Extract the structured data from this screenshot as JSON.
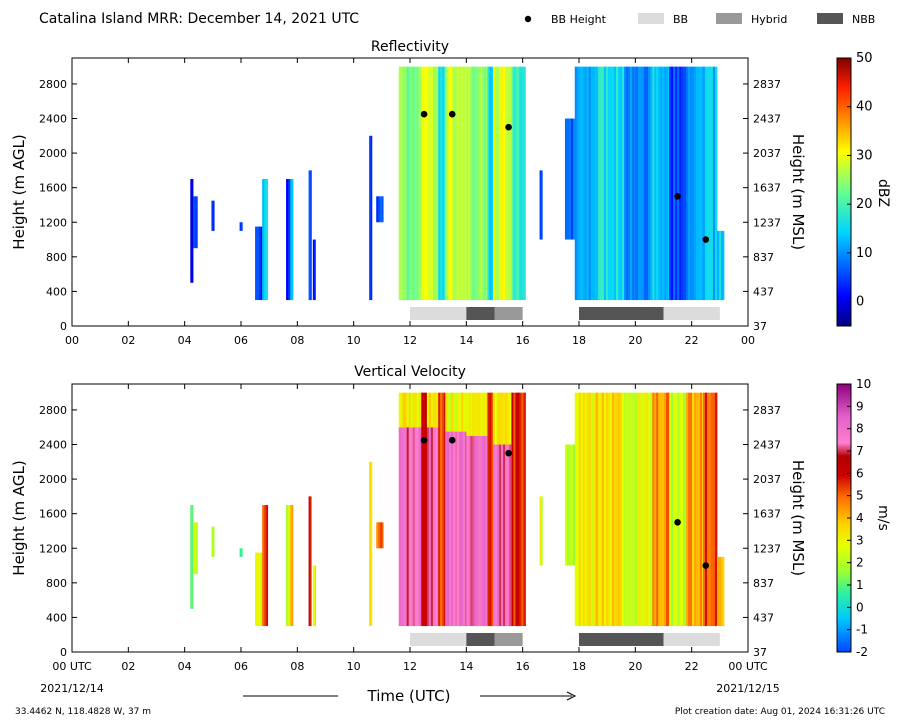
{
  "header": {
    "title": "Catalina Island MRR:  December 14, 2021 UTC",
    "legend": [
      {
        "label": "BB Height",
        "kind": "dot",
        "color": "#000000"
      },
      {
        "label": "BB",
        "kind": "box",
        "color": "#dcdcdc"
      },
      {
        "label": "Hybrid",
        "kind": "box",
        "color": "#999999"
      },
      {
        "label": "NBB",
        "kind": "box",
        "color": "#555555"
      }
    ]
  },
  "footer": {
    "location": "33.4462 N, 118.4828 W, 37 m",
    "creation": "Plot creation date: Aug 01, 2024 16:31:26 UTC",
    "xlabel": "Time (UTC)",
    "start_date": "2021/12/14",
    "end_date": "2021/12/15"
  },
  "chart_data": [
    {
      "type": "heatmap",
      "title": "Reflectivity",
      "xlabel": "Time (UTC)",
      "ylabel": "Height (m AGL)",
      "ylabel_right": "Height (m MSL)",
      "colorbar_label": "dBZ",
      "colorbar_range": [
        -5,
        50
      ],
      "colorbar_ticks": [
        "0",
        "10",
        "20",
        "30",
        "40",
        "50"
      ],
      "colormap": "jet",
      "xlim": [
        0,
        24
      ],
      "ylim": [
        0,
        3100
      ],
      "x_ticks": [
        "00",
        "02",
        "04",
        "06",
        "08",
        "10",
        "12",
        "14",
        "16",
        "18",
        "20",
        "22",
        "00"
      ],
      "y_ticks": [
        "0",
        "400",
        "800",
        "1200",
        "1600",
        "2000",
        "2400",
        "2800"
      ],
      "y_ticks_right": [
        "37",
        "437",
        "837",
        "1237",
        "1637",
        "2037",
        "2437",
        "2837"
      ],
      "bb_height_points": [
        [
          12.5,
          2450
        ],
        [
          13.5,
          2450
        ],
        [
          15.5,
          2300
        ],
        [
          21.5,
          1500
        ],
        [
          22.5,
          1000
        ]
      ],
      "bb_type_bar": [
        {
          "start": 12.0,
          "end": 14.0,
          "type": "BB"
        },
        {
          "start": 14.0,
          "end": 15.0,
          "type": "NBB"
        },
        {
          "start": 15.0,
          "end": 16.0,
          "type": "Hybrid"
        },
        {
          "start": 18.0,
          "end": 21.0,
          "type": "NBB"
        },
        {
          "start": 21.0,
          "end": 23.0,
          "type": "BB"
        }
      ],
      "echo_columns": [
        {
          "t0": 4.2,
          "t1": 4.3,
          "h0": 500,
          "h1": 1700,
          "v": 2
        },
        {
          "t0": 4.3,
          "t1": 4.45,
          "h0": 900,
          "h1": 1500,
          "v": 3
        },
        {
          "t0": 4.95,
          "t1": 5.05,
          "h0": 1100,
          "h1": 1450,
          "v": 2
        },
        {
          "t0": 5.95,
          "t1": 6.05,
          "h0": 1100,
          "h1": 1200,
          "v": 7
        },
        {
          "t0": 6.5,
          "t1": 6.75,
          "h0": 300,
          "h1": 1150,
          "v": 3
        },
        {
          "t0": 6.75,
          "t1": 6.95,
          "h0": 300,
          "h1": 1700,
          "v": 14
        },
        {
          "t0": 7.6,
          "t1": 7.75,
          "h0": 300,
          "h1": 1700,
          "v": 4
        },
        {
          "t0": 7.75,
          "t1": 7.85,
          "h0": 300,
          "h1": 1700,
          "v": 12
        },
        {
          "t0": 8.4,
          "t1": 8.5,
          "h0": 300,
          "h1": 1800,
          "v": 6
        },
        {
          "t0": 8.55,
          "t1": 8.65,
          "h0": 300,
          "h1": 1000,
          "v": 3
        },
        {
          "t0": 10.55,
          "t1": 10.65,
          "h0": 300,
          "h1": 2200,
          "v": 3
        },
        {
          "t0": 10.8,
          "t1": 11.05,
          "h0": 1200,
          "h1": 1500,
          "v": 6
        },
        {
          "t0": 11.6,
          "t1": 12.4,
          "h0": 300,
          "h1": 3000,
          "v": 24
        },
        {
          "t0": 12.4,
          "t1": 12.6,
          "h0": 300,
          "h1": 3000,
          "v": 30
        },
        {
          "t0": 12.6,
          "t1": 13.0,
          "h0": 300,
          "h1": 3000,
          "v": 26
        },
        {
          "t0": 13.0,
          "t1": 13.25,
          "h0": 300,
          "h1": 3000,
          "v": 16
        },
        {
          "t0": 13.25,
          "t1": 14.0,
          "h0": 300,
          "h1": 3000,
          "v": 28
        },
        {
          "t0": 14.0,
          "t1": 14.75,
          "h0": 300,
          "h1": 3000,
          "v": 25
        },
        {
          "t0": 14.75,
          "t1": 14.95,
          "h0": 300,
          "h1": 3000,
          "v": 14
        },
        {
          "t0": 14.95,
          "t1": 15.6,
          "h0": 300,
          "h1": 3000,
          "v": 29
        },
        {
          "t0": 15.6,
          "t1": 16.1,
          "h0": 300,
          "h1": 3000,
          "v": 18
        },
        {
          "t0": 16.6,
          "t1": 16.7,
          "h0": 1000,
          "h1": 1800,
          "v": 6
        },
        {
          "t0": 17.5,
          "t1": 17.85,
          "h0": 1000,
          "h1": 2400,
          "v": 8
        },
        {
          "t0": 17.85,
          "t1": 18.6,
          "h0": 300,
          "h1": 3000,
          "v": 12
        },
        {
          "t0": 18.6,
          "t1": 19.6,
          "h0": 300,
          "h1": 3000,
          "v": 16
        },
        {
          "t0": 19.6,
          "t1": 20.6,
          "h0": 300,
          "h1": 3000,
          "v": 10
        },
        {
          "t0": 20.6,
          "t1": 21.2,
          "h0": 300,
          "h1": 3000,
          "v": 14
        },
        {
          "t0": 21.2,
          "t1": 21.8,
          "h0": 300,
          "h1": 3000,
          "v": 5
        },
        {
          "t0": 21.8,
          "t1": 22.4,
          "h0": 300,
          "h1": 3000,
          "v": 10
        },
        {
          "t0": 22.4,
          "t1": 22.9,
          "h0": 300,
          "h1": 3000,
          "v": 13
        },
        {
          "t0": 22.9,
          "t1": 23.15,
          "h0": 300,
          "h1": 1100,
          "v": 15
        }
      ]
    },
    {
      "type": "heatmap",
      "title": "Vertical Velocity",
      "xlabel": "Time (UTC)",
      "ylabel": "Height (m AGL)",
      "ylabel_right": "Height (m MSL)",
      "colorbar_label": "m/s",
      "colorbar_range": [
        -2,
        10
      ],
      "colorbar_ticks": [
        "-2",
        "-1",
        "0",
        "1",
        "2",
        "3",
        "4",
        "5",
        "6",
        "7",
        "8",
        "9",
        "10"
      ],
      "colormap": "velocity",
      "xlim": [
        0,
        24
      ],
      "ylim": [
        0,
        3100
      ],
      "x_ticks": [
        "00 UTC",
        "02",
        "04",
        "06",
        "08",
        "10",
        "12",
        "14",
        "16",
        "18",
        "20",
        "22",
        "00 UTC"
      ],
      "y_ticks": [
        "0",
        "400",
        "800",
        "1200",
        "1600",
        "2000",
        "2400",
        "2800"
      ],
      "y_ticks_right": [
        "37",
        "437",
        "837",
        "1237",
        "1637",
        "2037",
        "2437",
        "2837"
      ],
      "bb_height_points": [
        [
          12.5,
          2450
        ],
        [
          13.5,
          2450
        ],
        [
          15.5,
          2300
        ],
        [
          21.5,
          1500
        ],
        [
          22.5,
          1000
        ]
      ],
      "bb_type_bar": [
        {
          "start": 12.0,
          "end": 14.0,
          "type": "BB"
        },
        {
          "start": 14.0,
          "end": 15.0,
          "type": "NBB"
        },
        {
          "start": 15.0,
          "end": 16.0,
          "type": "Hybrid"
        },
        {
          "start": 18.0,
          "end": 21.0,
          "type": "NBB"
        },
        {
          "start": 21.0,
          "end": 23.0,
          "type": "BB"
        }
      ],
      "echo_columns": [
        {
          "t0": 4.2,
          "t1": 4.3,
          "h0": 500,
          "h1": 1700,
          "v": 1.5
        },
        {
          "t0": 4.3,
          "t1": 4.45,
          "h0": 900,
          "h1": 1500,
          "v": 1.8
        },
        {
          "t0": 4.95,
          "t1": 5.05,
          "h0": 1100,
          "h1": 1450,
          "v": 1.5
        },
        {
          "t0": 5.95,
          "t1": 6.05,
          "h0": 1100,
          "h1": 1200,
          "v": 1.2
        },
        {
          "t0": 6.5,
          "t1": 6.75,
          "h0": 300,
          "h1": 1150,
          "v": 2.3
        },
        {
          "t0": 6.75,
          "t1": 6.95,
          "h0": 300,
          "h1": 1700,
          "v": 5.2
        },
        {
          "t0": 7.6,
          "t1": 7.75,
          "h0": 300,
          "h1": 1700,
          "v": 2.5
        },
        {
          "t0": 7.75,
          "t1": 7.85,
          "h0": 300,
          "h1": 1700,
          "v": 4.0
        },
        {
          "t0": 8.4,
          "t1": 8.5,
          "h0": 300,
          "h1": 1800,
          "v": 5.8
        },
        {
          "t0": 8.55,
          "t1": 8.65,
          "h0": 300,
          "h1": 1000,
          "v": 3.0
        },
        {
          "t0": 10.55,
          "t1": 10.65,
          "h0": 300,
          "h1": 2200,
          "v": 3.2
        },
        {
          "t0": 10.8,
          "t1": 11.05,
          "h0": 1200,
          "h1": 1500,
          "v": 5.0
        },
        {
          "t0": 11.6,
          "t1": 12.4,
          "h0": 300,
          "h1": 2600,
          "v": 7.6
        },
        {
          "t0": 11.6,
          "t1": 12.4,
          "h0": 2600,
          "h1": 3000,
          "v": 3.2
        },
        {
          "t0": 12.4,
          "t1": 12.6,
          "h0": 300,
          "h1": 3000,
          "v": 6.2
        },
        {
          "t0": 12.6,
          "t1": 13.0,
          "h0": 300,
          "h1": 2600,
          "v": 7.4
        },
        {
          "t0": 12.6,
          "t1": 13.0,
          "h0": 2600,
          "h1": 3000,
          "v": 3.5
        },
        {
          "t0": 13.0,
          "t1": 13.25,
          "h0": 300,
          "h1": 3000,
          "v": 5.5
        },
        {
          "t0": 13.25,
          "t1": 14.0,
          "h0": 300,
          "h1": 2550,
          "v": 7.8
        },
        {
          "t0": 13.25,
          "t1": 14.0,
          "h0": 2550,
          "h1": 3000,
          "v": 3.0
        },
        {
          "t0": 14.0,
          "t1": 14.75,
          "h0": 300,
          "h1": 2500,
          "v": 7.5
        },
        {
          "t0": 14.0,
          "t1": 14.75,
          "h0": 2500,
          "h1": 3000,
          "v": 3.3
        },
        {
          "t0": 14.75,
          "t1": 14.95,
          "h0": 300,
          "h1": 3000,
          "v": 5.8
        },
        {
          "t0": 14.95,
          "t1": 15.6,
          "h0": 300,
          "h1": 2400,
          "v": 7.6
        },
        {
          "t0": 14.95,
          "t1": 15.6,
          "h0": 2400,
          "h1": 3000,
          "v": 3.1
        },
        {
          "t0": 15.6,
          "t1": 16.1,
          "h0": 300,
          "h1": 3000,
          "v": 5.6
        },
        {
          "t0": 16.6,
          "t1": 16.7,
          "h0": 1000,
          "h1": 1800,
          "v": 2.5
        },
        {
          "t0": 17.5,
          "t1": 17.85,
          "h0": 1000,
          "h1": 2400,
          "v": 2.0
        },
        {
          "t0": 17.85,
          "t1": 18.6,
          "h0": 300,
          "h1": 3000,
          "v": 3.0
        },
        {
          "t0": 18.6,
          "t1": 19.6,
          "h0": 300,
          "h1": 3000,
          "v": 3.4
        },
        {
          "t0": 19.6,
          "t1": 20.6,
          "h0": 300,
          "h1": 3000,
          "v": 2.6
        },
        {
          "t0": 20.6,
          "t1": 21.2,
          "h0": 300,
          "h1": 3000,
          "v": 4.6
        },
        {
          "t0": 21.2,
          "t1": 21.8,
          "h0": 300,
          "h1": 3000,
          "v": 2.2
        },
        {
          "t0": 21.8,
          "t1": 22.4,
          "h0": 300,
          "h1": 3000,
          "v": 4.2
        },
        {
          "t0": 22.4,
          "t1": 22.9,
          "h0": 300,
          "h1": 3000,
          "v": 5.3
        },
        {
          "t0": 22.9,
          "t1": 23.15,
          "h0": 300,
          "h1": 1100,
          "v": 3.5
        }
      ]
    }
  ]
}
